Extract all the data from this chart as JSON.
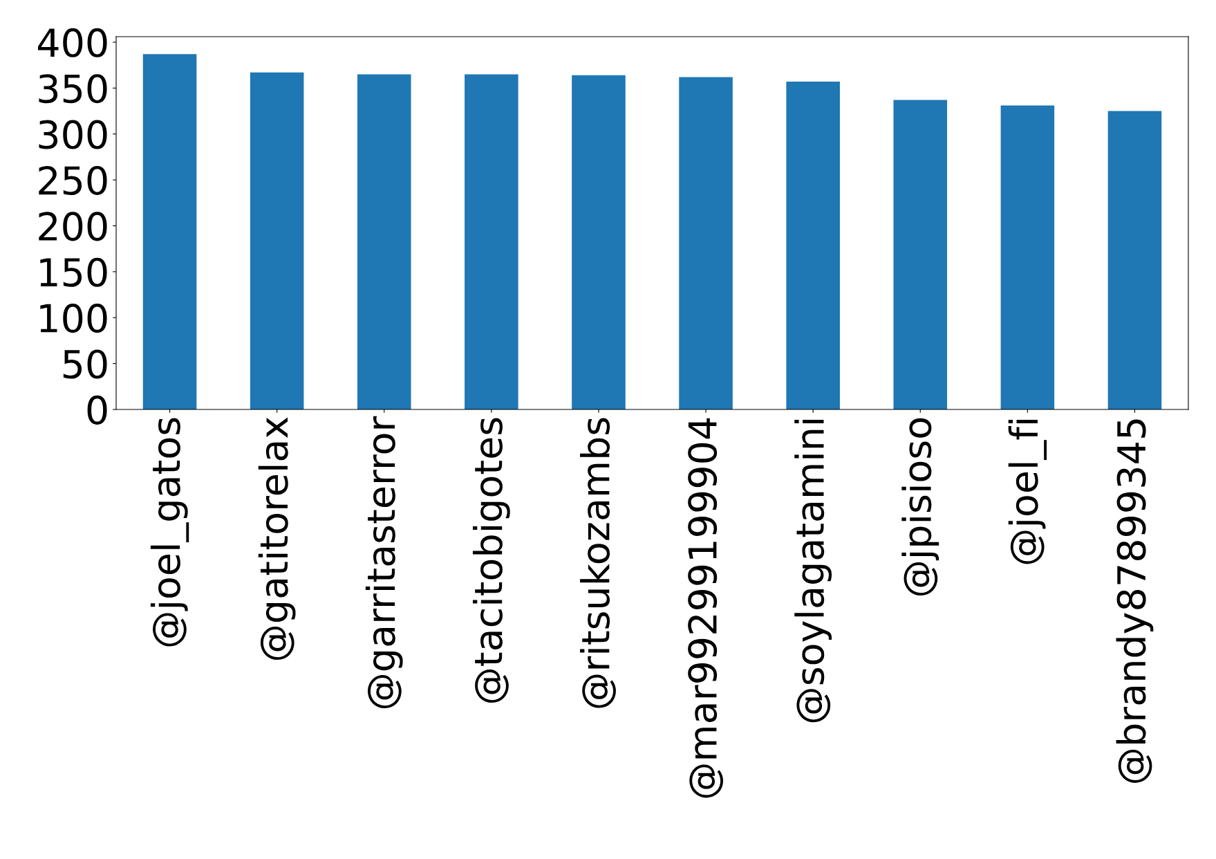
{
  "chart_data": {
    "type": "bar",
    "categories": [
      "@joel_gatos",
      "@gatitorelax",
      "@garritasterror",
      "@tacitobigotes",
      "@ritsukozambs",
      "@mar99299199904",
      "@soylagatamini",
      "@jpisioso",
      "@joel_fi",
      "@brandy87899345"
    ],
    "values": [
      387,
      367,
      365,
      365,
      364,
      362,
      357,
      337,
      331,
      325
    ],
    "color": "#1f77b4",
    "ylim": [
      0,
      406
    ],
    "yticks": [
      0,
      50,
      100,
      150,
      200,
      250,
      300,
      350,
      400
    ],
    "grid": false,
    "legend": false
  }
}
